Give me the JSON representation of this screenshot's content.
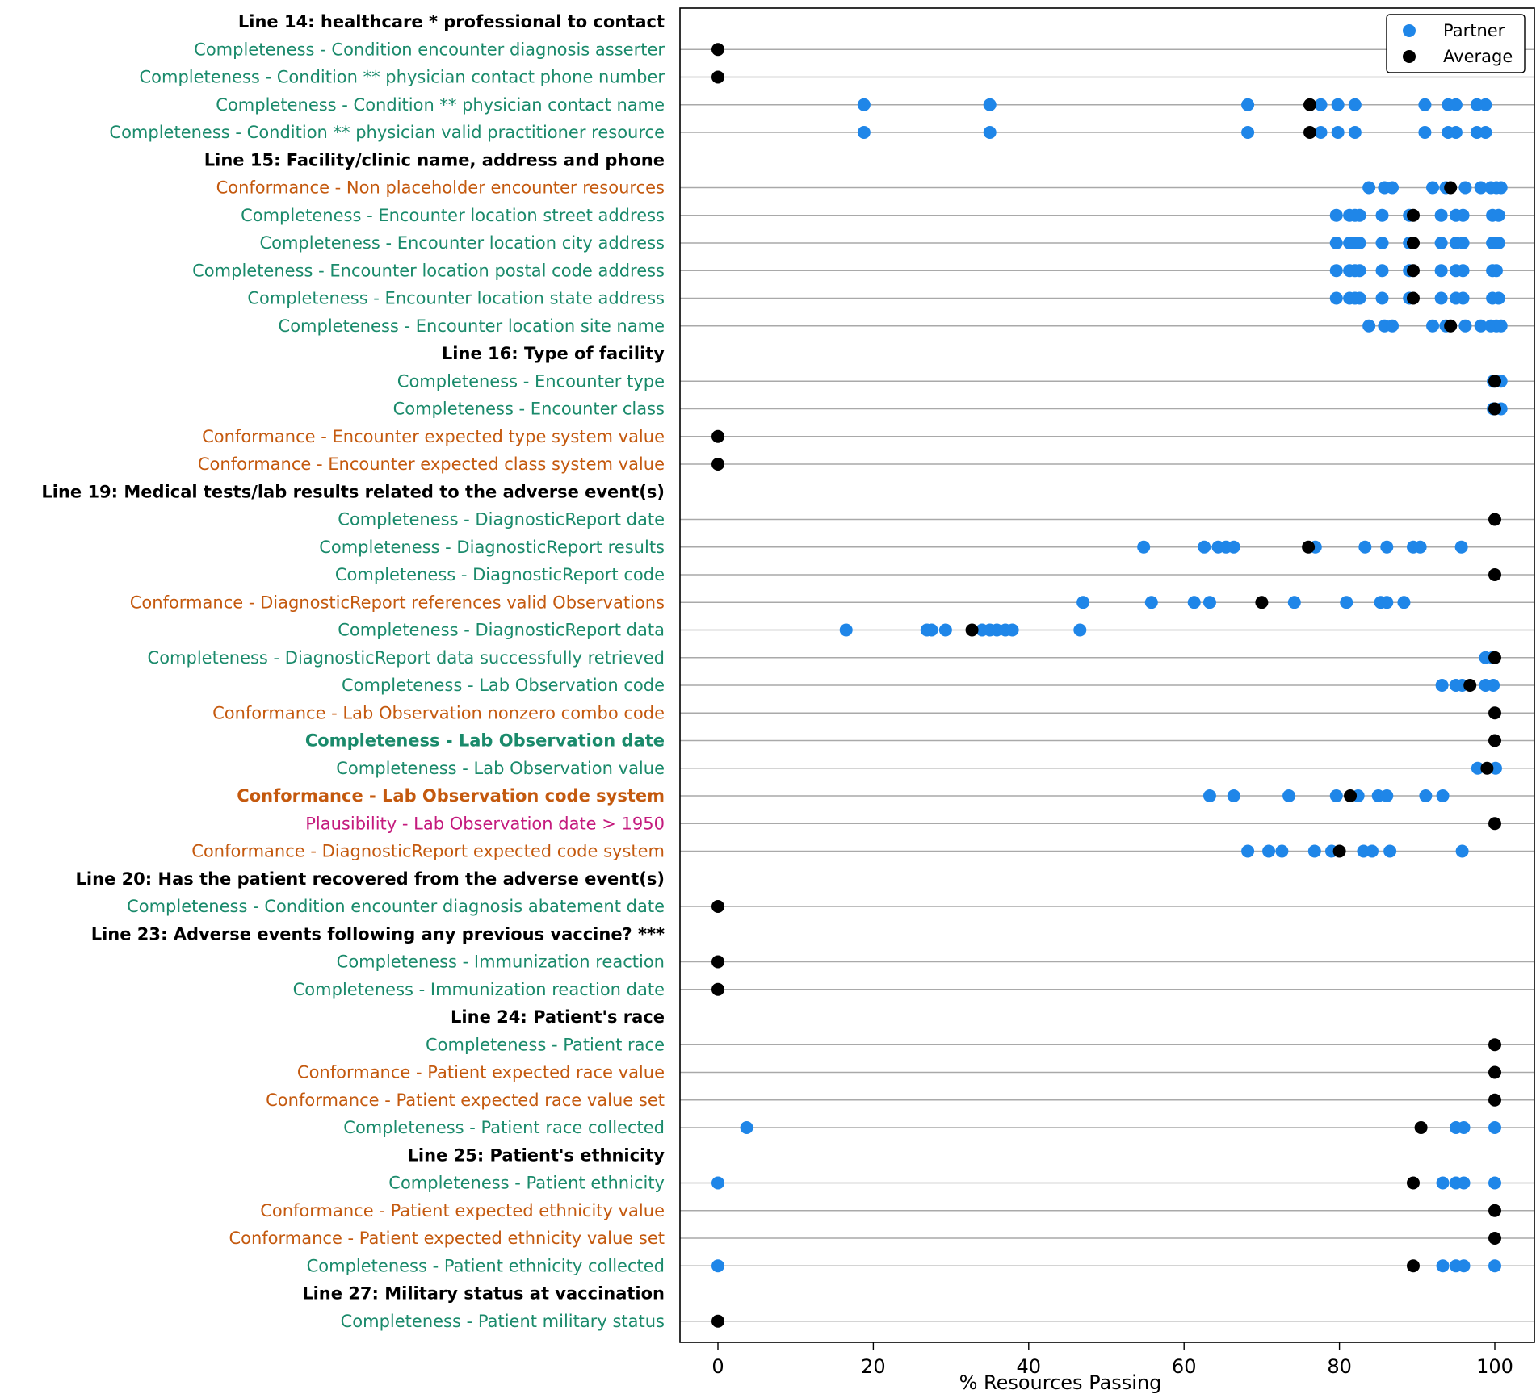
{
  "chart_data": {
    "type": "scatter",
    "title": "",
    "xlabel": "% Resources Passing",
    "ylabel": "",
    "xlim": [
      -5,
      105
    ],
    "xticks": [
      "0",
      "20",
      "40",
      "60",
      "80",
      "100"
    ],
    "grid": "horizontal",
    "legend_position": "top-right",
    "legend": [
      {
        "name": "Partner",
        "color": "#1f86e8"
      },
      {
        "name": "Average",
        "color": "#000000"
      }
    ],
    "category_colors": {
      "header": "#000000",
      "Completeness": "#1a8a6b",
      "Conformance": "#c4590e",
      "Plausibility": "#c41a7d"
    },
    "rows": [
      {
        "label": "Line 14: healthcare * professional to contact",
        "kind": "header"
      },
      {
        "label": "Completeness - Condition encounter diagnosis asserter",
        "kind": "Completeness",
        "partner": [],
        "average": 0
      },
      {
        "label": "Completeness - Condition ** physician contact phone number",
        "kind": "Completeness",
        "partner": [],
        "average": 0
      },
      {
        "label": "Completeness - Condition ** physician contact name",
        "kind": "Completeness",
        "partner": [
          18.8,
          35,
          68.2,
          77.6,
          79.8,
          82,
          91,
          94,
          95,
          97.7,
          98.8
        ],
        "average": 76.2
      },
      {
        "label": "Completeness - Condition ** physician valid practitioner resource",
        "kind": "Completeness",
        "partner": [
          18.8,
          35,
          68.2,
          77.6,
          79.8,
          82,
          91,
          94,
          95,
          97.7,
          98.8
        ],
        "average": 76.2
      },
      {
        "label": "Line 15: Facility/clinic name, address and phone",
        "kind": "header"
      },
      {
        "label": "Conformance - Non placeholder encounter resources",
        "kind": "Conformance",
        "partner": [
          83.8,
          85.8,
          86.8,
          92,
          93.7,
          96.2,
          98.2,
          99.5,
          100.2,
          100.8
        ],
        "average": 94.3
      },
      {
        "label": "Completeness - Encounter location street address",
        "kind": "Completeness",
        "partner": [
          79.6,
          81.3,
          82,
          82.6,
          85.5,
          89,
          93.1,
          95,
          95.9,
          99.7,
          100.5
        ],
        "average": 89.5
      },
      {
        "label": "Completeness - Encounter location city address",
        "kind": "Completeness",
        "partner": [
          79.6,
          81.3,
          82,
          82.6,
          85.5,
          89,
          93.1,
          95,
          95.9,
          99.7,
          100.5
        ],
        "average": 89.5
      },
      {
        "label": "Completeness - Encounter location postal code address",
        "kind": "Completeness",
        "partner": [
          79.6,
          81.3,
          82,
          82.6,
          85.5,
          89,
          93.1,
          95,
          95.9,
          99.7,
          100.2
        ],
        "average": 89.5
      },
      {
        "label": "Completeness - Encounter location state address",
        "kind": "Completeness",
        "partner": [
          79.6,
          81.3,
          82,
          82.6,
          85.5,
          89,
          93.1,
          95,
          95.9,
          99.7,
          100.5
        ],
        "average": 89.5
      },
      {
        "label": "Completeness - Encounter location site name",
        "kind": "Completeness",
        "partner": [
          83.8,
          85.8,
          86.8,
          92,
          93.7,
          96.2,
          98.2,
          99.5,
          100.2,
          100.8
        ],
        "average": 94.3
      },
      {
        "label": "Line 16: Type of facility",
        "kind": "header"
      },
      {
        "label": "Completeness - Encounter type",
        "kind": "Completeness",
        "partner": [
          99.8,
          100.8
        ],
        "average": 100
      },
      {
        "label": "Completeness - Encounter class",
        "kind": "Completeness",
        "partner": [
          99.8,
          100.8
        ],
        "average": 100
      },
      {
        "label": "Conformance - Encounter expected type system value",
        "kind": "Conformance",
        "partner": [],
        "average": 0
      },
      {
        "label": "Conformance - Encounter expected class system value",
        "kind": "Conformance",
        "partner": [],
        "average": 0
      },
      {
        "label": "Line 19: Medical tests/lab results related to the adverse event(s)",
        "kind": "header"
      },
      {
        "label": "Completeness - DiagnosticReport date",
        "kind": "Completeness",
        "partner": [],
        "average": 100
      },
      {
        "label": "Completeness - DiagnosticReport results",
        "kind": "Completeness",
        "partner": [
          54.8,
          62.6,
          64.4,
          65.4,
          66.4,
          76.9,
          83.3,
          86.1,
          89.5,
          90.4,
          95.7
        ],
        "average": 76
      },
      {
        "label": "Completeness - DiagnosticReport code",
        "kind": "Completeness",
        "partner": [],
        "average": 100
      },
      {
        "label": "Conformance - DiagnosticReport references valid Observations",
        "kind": "Conformance",
        "partner": [
          47,
          55.8,
          61.3,
          63.3,
          74.2,
          80.9,
          85.3,
          86.1,
          88.3
        ],
        "average": 70
      },
      {
        "label": "Completeness - DiagnosticReport data",
        "kind": "Completeness",
        "partner": [
          16.5,
          26.9,
          27.5,
          29.3,
          34,
          35,
          35.9,
          37,
          37.9,
          46.6
        ],
        "average": 32.7
      },
      {
        "label": "Completeness - DiagnosticReport data successfully retrieved",
        "kind": "Completeness",
        "partner": [
          98.8,
          99.7
        ],
        "average": 100
      },
      {
        "label": "Completeness - Lab Observation code",
        "kind": "Completeness",
        "partner": [
          93.2,
          95,
          95.8,
          98.8,
          99.8
        ],
        "average": 96.8
      },
      {
        "label": "Conformance - Lab Observation nonzero combo code",
        "kind": "Conformance",
        "partner": [],
        "average": 100
      },
      {
        "label": "Completeness - Lab Observation date",
        "kind": "Completeness",
        "bold": true,
        "partner": [],
        "average": 100
      },
      {
        "label": "Completeness - Lab Observation value",
        "kind": "Completeness",
        "partner": [
          97.8,
          100.1
        ],
        "average": 99
      },
      {
        "label": "Conformance - Lab Observation code system",
        "kind": "Conformance",
        "bold": true,
        "partner": [
          63.3,
          66.4,
          73.5,
          79.6,
          82.4,
          85,
          86.1,
          91.1,
          93.3
        ],
        "average": 81.4
      },
      {
        "label": "Plausibility - Lab Observation date > 1950",
        "kind": "Plausibility",
        "partner": [],
        "average": 100
      },
      {
        "label": "Conformance - DiagnosticReport expected code system",
        "kind": "Conformance",
        "partner": [
          68.2,
          70.9,
          72.6,
          76.8,
          79,
          83.1,
          84.2,
          86.5,
          95.8
        ],
        "average": 80
      },
      {
        "label": "Line 20: Has the patient recovered from the adverse event(s)",
        "kind": "header"
      },
      {
        "label": "Completeness - Condition encounter diagnosis abatement date",
        "kind": "Completeness",
        "partner": [],
        "average": 0
      },
      {
        "label": "Line 23: Adverse events following any previous vaccine? ***",
        "kind": "header"
      },
      {
        "label": "Completeness - Immunization reaction",
        "kind": "Completeness",
        "partner": [],
        "average": 0
      },
      {
        "label": "Completeness - Immunization reaction date",
        "kind": "Completeness",
        "partner": [],
        "average": 0
      },
      {
        "label": "Line 24: Patient's race",
        "kind": "header"
      },
      {
        "label": "Completeness - Patient race",
        "kind": "Completeness",
        "partner": [],
        "average": 100
      },
      {
        "label": "Conformance - Patient expected race value",
        "kind": "Conformance",
        "partner": [],
        "average": 100
      },
      {
        "label": "Conformance - Patient expected race value set",
        "kind": "Conformance",
        "partner": [],
        "average": 100
      },
      {
        "label": "Completeness - Patient race collected",
        "kind": "Completeness",
        "partner": [
          3.7,
          95,
          96,
          100
        ],
        "average": 90.5
      },
      {
        "label": "Line 25: Patient's ethnicity",
        "kind": "header"
      },
      {
        "label": "Completeness - Patient ethnicity",
        "kind": "Completeness",
        "partner": [
          0,
          93.3,
          95,
          96,
          100
        ],
        "average": 89.5
      },
      {
        "label": "Conformance - Patient expected ethnicity value",
        "kind": "Conformance",
        "partner": [],
        "average": 100
      },
      {
        "label": "Conformance - Patient expected ethnicity value set",
        "kind": "Conformance",
        "partner": [],
        "average": 100
      },
      {
        "label": "Completeness - Patient ethnicity collected",
        "kind": "Completeness",
        "partner": [
          0,
          93.3,
          95,
          96,
          100
        ],
        "average": 89.5
      },
      {
        "label": "Line 27: Military status at vaccination",
        "kind": "header"
      },
      {
        "label": "Completeness - Patient military status",
        "kind": "Completeness",
        "partner": [],
        "average": 0
      }
    ]
  }
}
